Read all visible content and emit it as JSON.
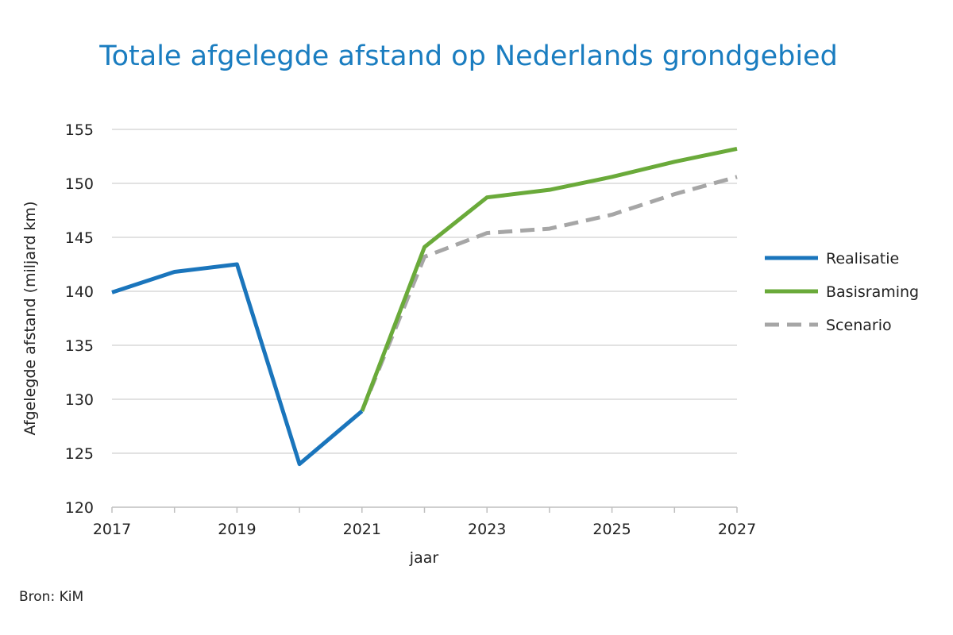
{
  "chart_data": {
    "type": "line",
    "title": "Totale afgelegde afstand op Nederlands grondgebied",
    "xlabel": "jaar",
    "ylabel": "Afgelegde afstand (miljard km)",
    "xlim": [
      2017,
      2027
    ],
    "ylim": [
      120,
      155
    ],
    "xticks": [
      "2017",
      "2019",
      "2021",
      "2023",
      "2025",
      "2027"
    ],
    "yticks": [
      "120",
      "125",
      "130",
      "135",
      "140",
      "145",
      "150",
      "155"
    ],
    "grid": "horizontal",
    "legend_position": "right",
    "series": [
      {
        "name": "Realisatie",
        "color": "#1a75bc",
        "style": "solid",
        "x": [
          2017,
          2018,
          2019,
          2020,
          2021
        ],
        "y": [
          139.9,
          141.8,
          142.5,
          124.0,
          128.9
        ]
      },
      {
        "name": "Basisraming",
        "color": "#6aaa3a",
        "style": "solid",
        "x": [
          2021,
          2022,
          2023,
          2024,
          2025,
          2026,
          2027
        ],
        "y": [
          128.9,
          144.1,
          148.7,
          149.4,
          150.6,
          152.0,
          153.2
        ]
      },
      {
        "name": "Scenario",
        "color": "#a6a6a6",
        "style": "dashed",
        "x": [
          2021,
          2022,
          2023,
          2024,
          2025,
          2026,
          2027
        ],
        "y": [
          128.9,
          143.2,
          145.4,
          145.8,
          147.1,
          149.0,
          150.6
        ]
      }
    ]
  },
  "source": "Bron: KiM"
}
